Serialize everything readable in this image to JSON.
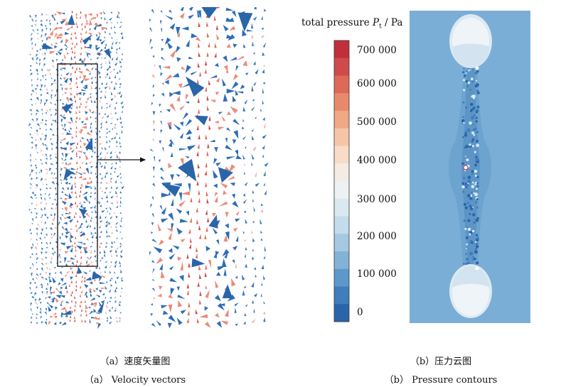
{
  "panel_a": {
    "caption_cn": "（a）速度矢量图",
    "caption_en": "（a） Velocity vectors"
  },
  "panel_b": {
    "caption_cn": "（b）压力云图",
    "caption_en": "（b） Pressure contours",
    "colorbar": {
      "title_prefix": "total pressure ",
      "symbol": "P",
      "subscript": "t",
      "unit_suffix": " / Pa",
      "tick_labels": [
        "700 000",
        "600 000",
        "500 000",
        "400 000",
        "300 000",
        "200 000",
        "100 000",
        "0"
      ],
      "min": 0,
      "max": 720000,
      "colors": [
        "#c1303a",
        "#cf4b4b",
        "#dd6a58",
        "#e88a6a",
        "#f0a886",
        "#f6c5a8",
        "#f8dcc8",
        "#f6ebe4",
        "#eef1f3",
        "#dae8f1",
        "#c3dbea",
        "#a4c9e1",
        "#82b3d7",
        "#5e98ca",
        "#3f7dbb",
        "#2a65aa"
      ]
    }
  }
}
